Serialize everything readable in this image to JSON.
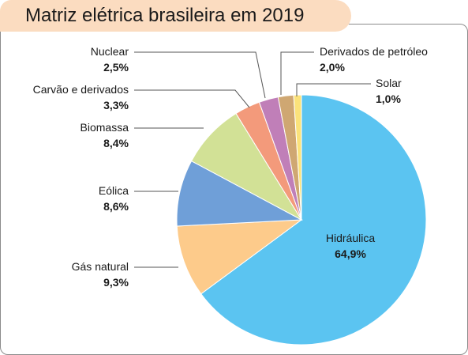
{
  "chart_data": {
    "type": "pie",
    "title": "Matriz elétrica brasileira em 2019",
    "slices": [
      {
        "label": "Hidráulica",
        "value": 64.9,
        "display": "64,9%",
        "color": "#5bc4f1"
      },
      {
        "label": "Gás natural",
        "value": 9.3,
        "display": "9,3%",
        "color": "#fdcb8b"
      },
      {
        "label": "Eólica",
        "value": 8.6,
        "display": "8,6%",
        "color": "#6f9fd8"
      },
      {
        "label": "Biomassa",
        "value": 8.4,
        "display": "8,4%",
        "color": "#d2e196"
      },
      {
        "label": "Carvão e derivados",
        "value": 3.3,
        "display": "3,3%",
        "color": "#f39a7b"
      },
      {
        "label": "Nuclear",
        "value": 2.5,
        "display": "2,5%",
        "color": "#c07fb8"
      },
      {
        "label": "Derivados de petróleo",
        "value": 2.0,
        "display": "2,0%",
        "color": "#cfa772"
      },
      {
        "label": "Solar",
        "value": 1.0,
        "display": "1,0%",
        "color": "#fbe27a"
      }
    ]
  }
}
